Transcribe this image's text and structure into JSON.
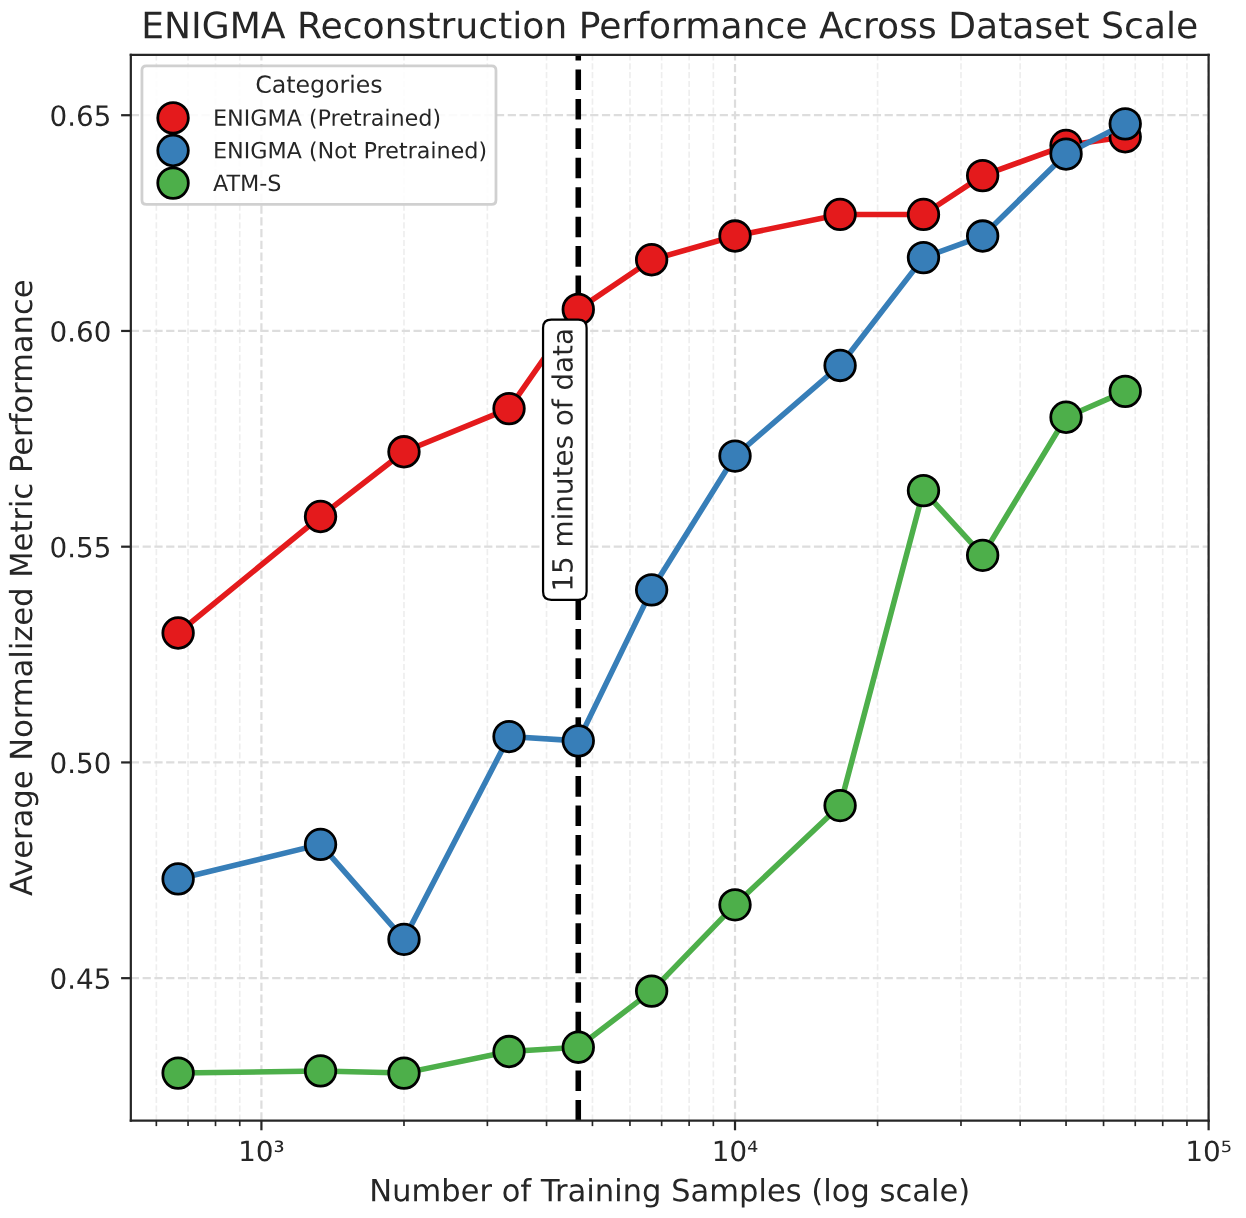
{
  "chart_data": {
    "type": "line",
    "title": "ENIGMA Reconstruction Performance Across Dataset Scale",
    "xlabel": "Number of Training Samples (log scale)",
    "ylabel": "Average Normalized Metric Performance",
    "legend_title": "Categories",
    "x": [
      667,
      1333,
      2000,
      3333,
      4667,
      6667,
      10000,
      16667,
      25000,
      33333,
      50000,
      66667
    ],
    "series": [
      {
        "name": "ENIGMA (Pretrained)",
        "color": "#e41a1c",
        "values": [
          0.53,
          0.557,
          0.572,
          0.582,
          0.605,
          0.6165,
          0.622,
          0.627,
          0.627,
          0.636,
          0.643,
          0.645
        ]
      },
      {
        "name": "ENIGMA (Not Pretrained)",
        "color": "#377eb8",
        "values": [
          0.473,
          0.481,
          0.459,
          0.506,
          0.505,
          0.54,
          0.571,
          0.592,
          0.617,
          0.622,
          0.641,
          0.648
        ]
      },
      {
        "name": "ATM-S",
        "color": "#4daf4a",
        "values": [
          0.428,
          0.4285,
          0.428,
          0.433,
          0.434,
          0.447,
          0.467,
          0.49,
          0.563,
          0.548,
          0.58,
          0.586
        ]
      }
    ],
    "log": "x",
    "xlim": [
      530,
      100000
    ],
    "xticks": [
      {
        "value": 1000,
        "label": "10³"
      },
      {
        "value": 10000,
        "label": "10⁴"
      },
      {
        "value": 100000,
        "label": "10⁵"
      }
    ],
    "ylim": [
      0.417,
      0.664
    ],
    "yticks": [
      {
        "value": 0.45,
        "label": "0.45"
      },
      {
        "value": 0.5,
        "label": "0.50"
      },
      {
        "value": 0.55,
        "label": "0.55"
      },
      {
        "value": 0.6,
        "label": "0.60"
      },
      {
        "value": 0.65,
        "label": "0.65"
      }
    ],
    "ref_lines": [
      {
        "axis": "x",
        "value": 4667,
        "label": "15 minutes of data",
        "color": "#000000",
        "line_style": "dashed"
      }
    ],
    "grid": true,
    "legend": "top left",
    "marker": "circle",
    "line_style": "solid"
  }
}
